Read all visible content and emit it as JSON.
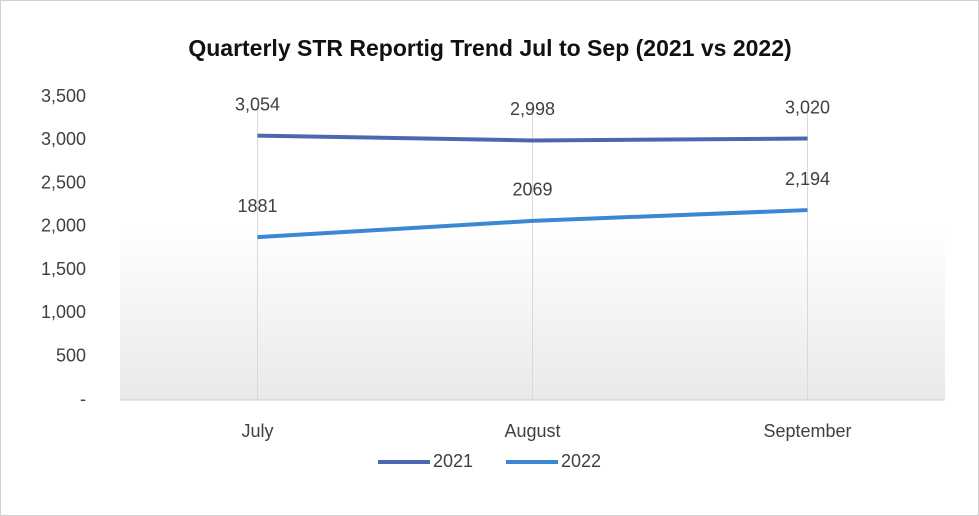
{
  "chart_data": {
    "type": "line",
    "title": "Quarterly STR Reportig Trend Jul to Sep (2021 vs 2022)",
    "categories": [
      "July",
      "August",
      "September"
    ],
    "series": [
      {
        "name": "2021",
        "color": "#4a69ad",
        "values": [
          3054,
          2998,
          3020
        ],
        "value_labels": [
          "3,054",
          "2,998",
          "3,020"
        ]
      },
      {
        "name": "2022",
        "color": "#3a87d6",
        "values": [
          1881,
          2069,
          2194
        ],
        "value_labels": [
          "1881",
          "2069",
          "2,194"
        ]
      }
    ],
    "ylim": [
      0,
      3500
    ],
    "yticks": [
      {
        "value": 0,
        "label": "-"
      },
      500,
      {
        "value": 1000,
        "label": "1,000"
      },
      {
        "value": 1500,
        "label": "1,500"
      },
      {
        "value": 2000,
        "label": "2,000"
      },
      {
        "value": 2500,
        "label": "2,500"
      },
      {
        "value": 3000,
        "label": "3,000"
      },
      {
        "value": 3500,
        "label": "3,500"
      }
    ],
    "legend": "bottom"
  }
}
